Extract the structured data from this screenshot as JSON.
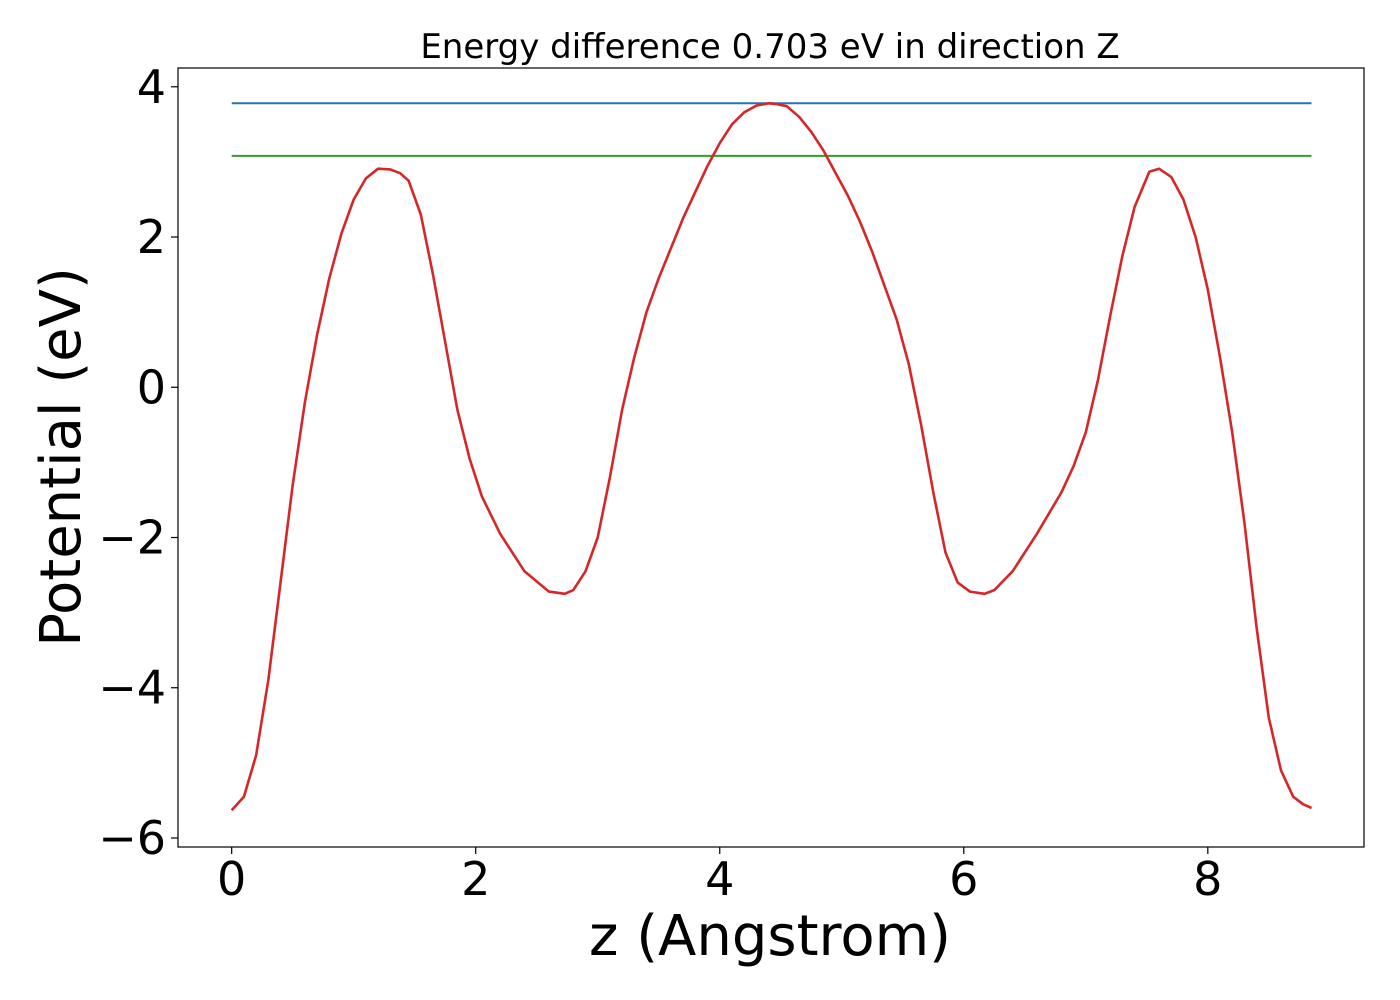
{
  "chart_data": {
    "type": "line",
    "title": "Energy difference 0.703 eV in direction Z",
    "xlabel": "z (Angstrom)",
    "ylabel": "Potential (eV)",
    "xlim": [
      -0.44,
      9.28
    ],
    "ylim": [
      -6.12,
      4.25
    ],
    "xticks": [
      0,
      2,
      4,
      6,
      8
    ],
    "xtick_labels": [
      "0",
      "2",
      "4",
      "6",
      "8"
    ],
    "yticks": [
      -6,
      -4,
      -2,
      0,
      2,
      4
    ],
    "ytick_labels": [
      "−6",
      "−4",
      "−2",
      "0",
      "2",
      "4"
    ],
    "grid": false,
    "series": [
      {
        "color": "#1f77b4",
        "x": [
          0,
          8.85
        ],
        "y": [
          3.78,
          3.78
        ]
      },
      {
        "color": "#2ca02c",
        "x": [
          0,
          8.85
        ],
        "y": [
          3.08,
          3.08
        ]
      },
      {
        "color": "#d62728",
        "x": [
          0,
          0.1,
          0.2,
          0.3,
          0.4,
          0.5,
          0.6,
          0.7,
          0.8,
          0.9,
          1.0,
          1.1,
          1.2,
          1.3,
          1.38,
          1.45,
          1.55,
          1.65,
          1.75,
          1.85,
          1.95,
          2.05,
          2.2,
          2.4,
          2.6,
          2.73,
          2.8,
          2.9,
          3.0,
          3.1,
          3.2,
          3.3,
          3.4,
          3.5,
          3.6,
          3.7,
          3.8,
          3.9,
          4.0,
          4.1,
          4.2,
          4.3,
          4.4,
          4.47,
          4.55,
          4.65,
          4.75,
          4.85,
          4.95,
          5.05,
          5.15,
          5.25,
          5.35,
          5.45,
          5.55,
          5.65,
          5.75,
          5.85,
          5.95,
          6.05,
          6.17,
          6.25,
          6.4,
          6.6,
          6.8,
          6.9,
          7.0,
          7.1,
          7.2,
          7.3,
          7.4,
          7.52,
          7.6,
          7.7,
          7.8,
          7.9,
          8.0,
          8.1,
          8.2,
          8.3,
          8.4,
          8.5,
          8.6,
          8.7,
          8.78,
          8.85
        ],
        "y": [
          -5.63,
          -5.45,
          -4.9,
          -3.9,
          -2.6,
          -1.3,
          -0.2,
          0.7,
          1.45,
          2.05,
          2.5,
          2.78,
          2.91,
          2.9,
          2.85,
          2.75,
          2.3,
          1.5,
          0.6,
          -0.3,
          -0.95,
          -1.45,
          -1.95,
          -2.45,
          -2.72,
          -2.75,
          -2.7,
          -2.45,
          -2.0,
          -1.2,
          -0.3,
          0.4,
          1.0,
          1.45,
          1.85,
          2.25,
          2.6,
          2.95,
          3.25,
          3.5,
          3.66,
          3.75,
          3.78,
          3.77,
          3.74,
          3.6,
          3.4,
          3.15,
          2.85,
          2.55,
          2.2,
          1.8,
          1.35,
          0.9,
          0.3,
          -0.5,
          -1.4,
          -2.2,
          -2.6,
          -2.72,
          -2.75,
          -2.7,
          -2.45,
          -1.95,
          -1.4,
          -1.05,
          -0.6,
          0.1,
          0.95,
          1.75,
          2.4,
          2.87,
          2.91,
          2.8,
          2.5,
          2.0,
          1.3,
          0.4,
          -0.6,
          -1.8,
          -3.2,
          -4.4,
          -5.1,
          -5.45,
          -5.55,
          -5.6
        ]
      }
    ]
  }
}
